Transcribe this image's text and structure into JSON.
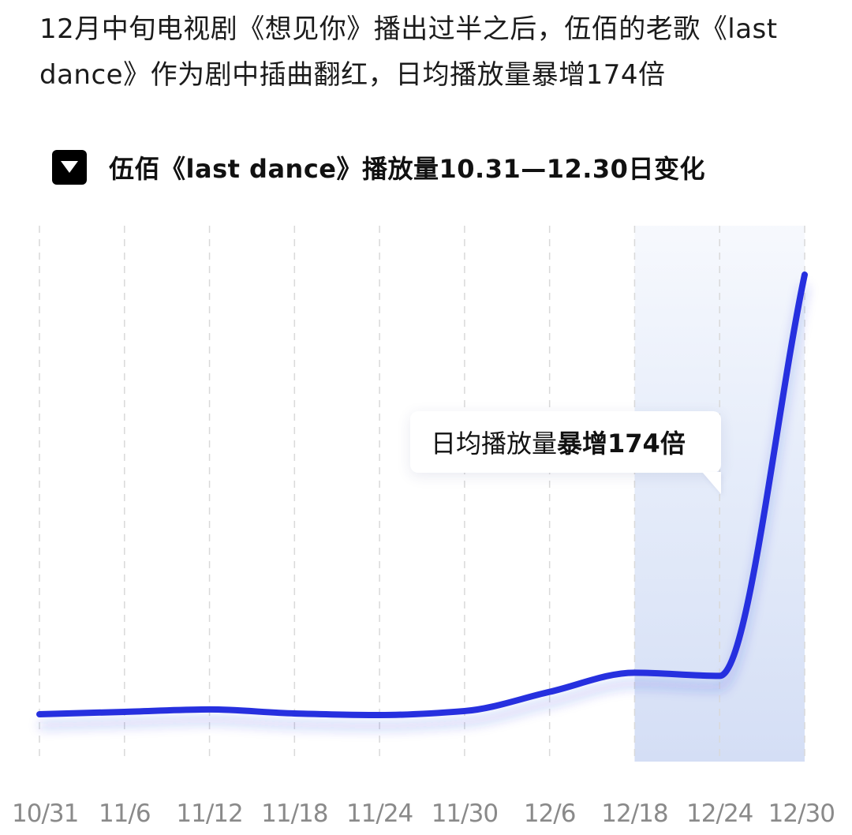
{
  "intro": {
    "text": "12月中旬电视剧《想见你》播出过半之后，伍佰的老歌《last dance》作为剧中插曲翻红，日均播放量暴增174倍"
  },
  "chart_header": {
    "icon": "triangle-down-icon",
    "title": "伍佰《last dance》播放量10.31—12.30日变化"
  },
  "callout": {
    "normal": "日均播放量",
    "bold": "暴增174倍"
  },
  "colors": {
    "line": "#2630df",
    "highlight": "#dde6f8",
    "grid": "#d9d9d9",
    "tick": "#8a8a8a"
  },
  "chart_data": {
    "type": "line",
    "title": "伍佰《last dance》播放量10.31—12.30日变化",
    "xlabel": "",
    "ylabel": "",
    "grid": "vertical dashed lines at each tick",
    "y_axis_shown": false,
    "categories": [
      "10/31",
      "11/6",
      "11/12",
      "11/18",
      "11/24",
      "11/30",
      "12/6",
      "12/18",
      "12/24",
      "12/30"
    ],
    "series": [
      {
        "values": [
          1.0,
          1.15,
          1.3,
          1.05,
          0.95,
          1.2,
          2.4,
          3.6,
          3.4,
          28.5
        ]
      }
    ],
    "highlight_range": [
      "12/18",
      "12/30"
    ],
    "annotation": "日均播放量暴增174倍"
  }
}
